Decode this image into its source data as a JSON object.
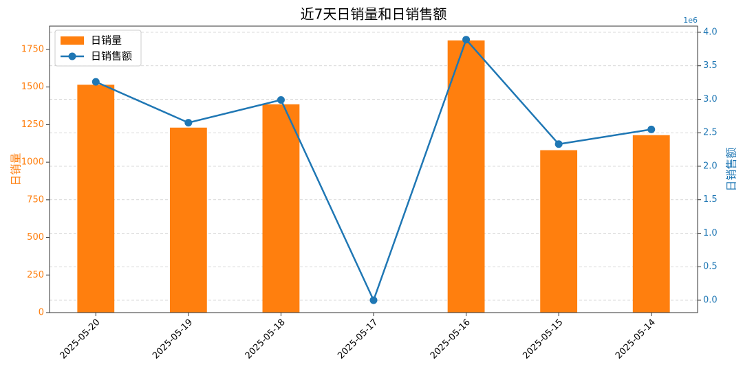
{
  "chart_data": {
    "type": "bar_line",
    "title": "近7天日销量和日销售额",
    "categories": [
      "2025-05-20",
      "2025-05-19",
      "2025-05-18",
      "2025-05-17",
      "2025-05-16",
      "2025-05-15",
      "2025-05-14"
    ],
    "series": [
      {
        "name": "日销量",
        "type": "bar",
        "color": "#ff7f0e",
        "values": [
          1515,
          1230,
          1385,
          0,
          1810,
          1080,
          1180
        ]
      },
      {
        "name": "日销售额",
        "type": "line",
        "axis": "y2",
        "color": "#1f77b4",
        "values": [
          3.26,
          2.65,
          2.99,
          0.0,
          3.89,
          2.33,
          2.55
        ]
      }
    ],
    "ylabel": "日销量",
    "y2label": "日销售额",
    "y2_scale_text": "1e6",
    "ylim": [
      0,
      1905
    ],
    "yticks": [
      0,
      250,
      500,
      750,
      1000,
      1250,
      1500,
      1750
    ],
    "y2lim": [
      -0.185,
      4.092
    ],
    "y2ticks": [
      {
        "value": 0,
        "label": "0.0"
      },
      {
        "value": 0.5,
        "label": "0.5"
      },
      {
        "value": 1,
        "label": "1.0"
      },
      {
        "value": 1.5,
        "label": "1.5"
      },
      {
        "value": 2,
        "label": "2.0"
      },
      {
        "value": 2.5,
        "label": "2.5"
      },
      {
        "value": 3,
        "label": "3.0"
      },
      {
        "value": 3.5,
        "label": "3.5"
      },
      {
        "value": 4,
        "label": "4.0"
      }
    ],
    "grid": "y2",
    "legend": "upper-left"
  }
}
